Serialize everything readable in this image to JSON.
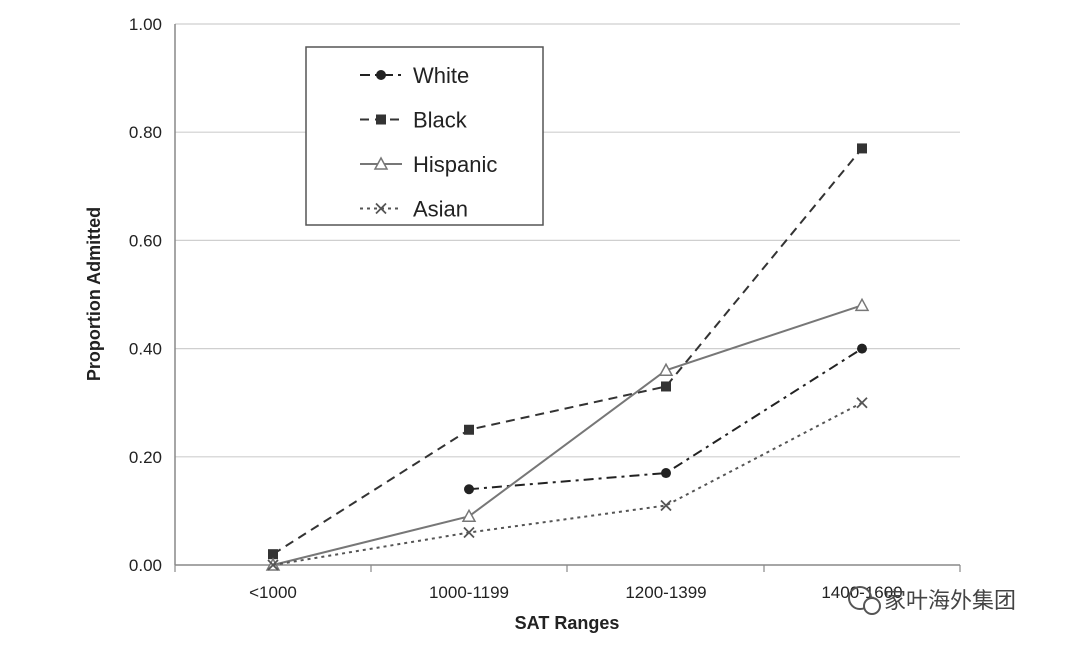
{
  "chart_data": {
    "type": "line",
    "title": "",
    "xlabel": "SAT Ranges",
    "ylabel": "Proportion Admitted",
    "categories": [
      "<1000",
      "1000-1199",
      "1200-1399",
      "1400-1600"
    ],
    "ylim": [
      0,
      1
    ],
    "yticks": [
      "0.00",
      "0.20",
      "0.40",
      "0.60",
      "0.80",
      "1.00"
    ],
    "grid": true,
    "legend_position": "top-left",
    "series": [
      {
        "name": "White",
        "values": [
          null,
          0.14,
          0.17,
          0.4
        ],
        "marker": "circle",
        "dash": "dash-dot",
        "color": "#222222"
      },
      {
        "name": "Black",
        "values": [
          0.02,
          0.25,
          0.33,
          0.77
        ],
        "marker": "square",
        "dash": "dashed",
        "color": "#333333"
      },
      {
        "name": "Hispanic",
        "values": [
          0.0,
          0.09,
          0.36,
          0.48
        ],
        "marker": "triangle",
        "dash": "solid",
        "color": "#777777"
      },
      {
        "name": "Asian",
        "values": [
          0.0,
          0.06,
          0.11,
          0.3
        ],
        "marker": "x",
        "dash": "dotted",
        "color": "#555555"
      }
    ]
  },
  "watermark": {
    "text": "家叶海外集团",
    "icon": "wechat-icon"
  }
}
